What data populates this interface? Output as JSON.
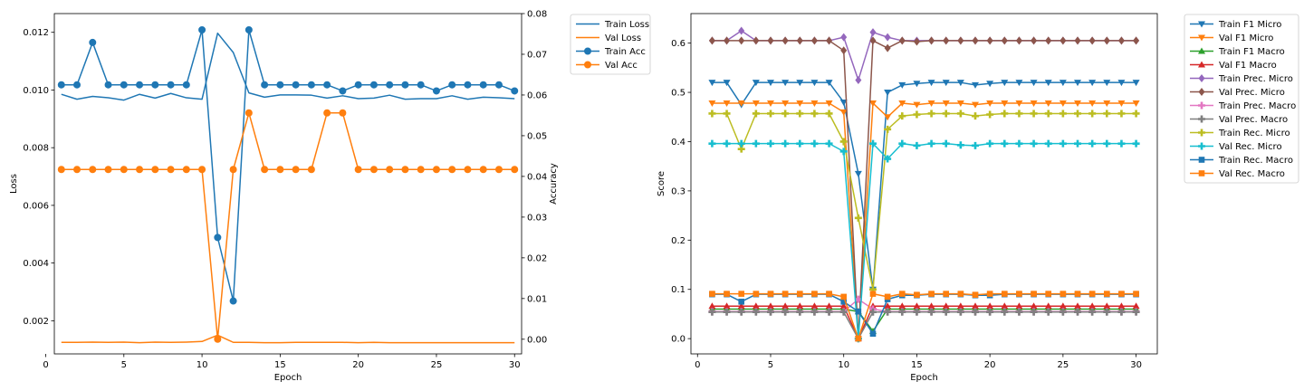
{
  "colors": {
    "blue": "#1f77b4",
    "orange": "#ff7f0e",
    "green": "#2ca02c",
    "red": "#d62728",
    "purple": "#9467bd",
    "brown": "#8c564b",
    "pink": "#e377c2",
    "gray": "#7f7f7f",
    "olive": "#bcbd22",
    "cyan": "#17becf"
  },
  "chart_data": [
    {
      "type": "line",
      "xlabel": "Epoch",
      "ylabel": "Loss",
      "ylabel_right": "Accuracy",
      "xlim": [
        0.55,
        30.45
      ],
      "ylim": [
        0.00085,
        0.01265
      ],
      "ylim_right": [
        -0.0036,
        0.08
      ],
      "x_ticks": [
        0,
        5,
        10,
        15,
        20,
        25,
        30
      ],
      "y_ticks": [
        0.002,
        0.004,
        0.006,
        0.008,
        0.01,
        0.012
      ],
      "y_tick_labels": [
        "0.002",
        "0.004",
        "0.006",
        "0.008",
        "0.010",
        "0.012"
      ],
      "y_ticks_right": [
        0.0,
        0.01,
        0.02,
        0.03,
        0.04,
        0.05,
        0.06,
        0.07,
        0.08
      ],
      "y_tick_labels_right": [
        "0.00",
        "0.01",
        "0.02",
        "0.03",
        "0.04",
        "0.05",
        "0.06",
        "0.07",
        "0.08"
      ],
      "legend": "outside-right",
      "x": [
        1,
        2,
        3,
        4,
        5,
        6,
        7,
        8,
        9,
        10,
        11,
        12,
        13,
        14,
        15,
        16,
        17,
        18,
        19,
        20,
        21,
        22,
        23,
        24,
        25,
        26,
        27,
        28,
        29,
        30
      ],
      "series": [
        {
          "name": "Train Loss",
          "axis": "left",
          "color": "blue",
          "marker": "none",
          "values": [
            0.00985,
            0.00968,
            0.00978,
            0.00973,
            0.00965,
            0.00985,
            0.00972,
            0.00988,
            0.00973,
            0.00968,
            0.01197,
            0.0113,
            0.0099,
            0.00975,
            0.00983,
            0.00983,
            0.00982,
            0.00972,
            0.0098,
            0.0097,
            0.00972,
            0.00982,
            0.00968,
            0.0097,
            0.0097,
            0.0098,
            0.00968,
            0.00975,
            0.00973,
            0.0097
          ]
        },
        {
          "name": "Val Loss",
          "axis": "left",
          "color": "orange",
          "marker": "none",
          "values": [
            0.00125,
            0.00125,
            0.00126,
            0.00125,
            0.00126,
            0.00124,
            0.00126,
            0.00125,
            0.00126,
            0.00128,
            0.0015,
            0.00125,
            0.00125,
            0.00124,
            0.00124,
            0.00125,
            0.00125,
            0.00125,
            0.00125,
            0.00124,
            0.00125,
            0.00124,
            0.00124,
            0.00124,
            0.00124,
            0.00124,
            0.00124,
            0.00124,
            0.00124,
            0.00124
          ]
        },
        {
          "name": "Train Acc",
          "axis": "right",
          "color": "blue",
          "marker": "circle",
          "values": [
            0.0625,
            0.0625,
            0.0729,
            0.0625,
            0.0625,
            0.0625,
            0.0625,
            0.0625,
            0.0625,
            0.076,
            0.025,
            0.0094,
            0.076,
            0.0625,
            0.0625,
            0.0625,
            0.0625,
            0.0625,
            0.061,
            0.0625,
            0.0625,
            0.0625,
            0.0625,
            0.0625,
            0.061,
            0.0625,
            0.0625,
            0.0625,
            0.0625,
            0.061
          ]
        },
        {
          "name": "Val Acc",
          "axis": "right",
          "color": "orange",
          "marker": "circle",
          "values": [
            0.0417,
            0.0417,
            0.0417,
            0.0417,
            0.0417,
            0.0417,
            0.0417,
            0.0417,
            0.0417,
            0.0417,
            0.0,
            0.0417,
            0.0556,
            0.0417,
            0.0417,
            0.0417,
            0.0417,
            0.0556,
            0.0556,
            0.0417,
            0.0417,
            0.0417,
            0.0417,
            0.0417,
            0.0417,
            0.0417,
            0.0417,
            0.0417,
            0.0417,
            0.0417
          ]
        }
      ]
    },
    {
      "type": "line",
      "xlabel": "Epoch",
      "ylabel": "Score",
      "xlim": [
        -0.45,
        31.45
      ],
      "ylim": [
        -0.031,
        0.66
      ],
      "x_ticks": [
        0,
        5,
        10,
        15,
        20,
        25,
        30
      ],
      "y_ticks": [
        0.0,
        0.1,
        0.2,
        0.3,
        0.4,
        0.5,
        0.6
      ],
      "y_tick_labels": [
        "0.0",
        "0.1",
        "0.2",
        "0.3",
        "0.4",
        "0.5",
        "0.6"
      ],
      "legend": "outside-right",
      "x": [
        1,
        2,
        3,
        4,
        5,
        6,
        7,
        8,
        9,
        10,
        11,
        12,
        13,
        14,
        15,
        16,
        17,
        18,
        19,
        20,
        21,
        22,
        23,
        24,
        25,
        26,
        27,
        28,
        29,
        30
      ],
      "series": [
        {
          "name": "Train F1 Micro",
          "color": "blue",
          "marker": "triangle-down",
          "values": [
            0.52,
            0.52,
            0.475,
            0.52,
            0.52,
            0.52,
            0.52,
            0.52,
            0.52,
            0.48,
            0.335,
            0.1,
            0.5,
            0.515,
            0.518,
            0.52,
            0.52,
            0.52,
            0.515,
            0.518,
            0.52,
            0.52,
            0.52,
            0.52,
            0.52,
            0.52,
            0.52,
            0.52,
            0.52,
            0.52
          ]
        },
        {
          "name": "Val F1 Micro",
          "color": "orange",
          "marker": "triangle-down",
          "values": [
            0.478,
            0.478,
            0.478,
            0.478,
            0.478,
            0.478,
            0.478,
            0.478,
            0.478,
            0.46,
            0.0,
            0.478,
            0.45,
            0.478,
            0.475,
            0.478,
            0.478,
            0.478,
            0.475,
            0.478,
            0.478,
            0.478,
            0.478,
            0.478,
            0.478,
            0.478,
            0.478,
            0.478,
            0.478,
            0.478
          ]
        },
        {
          "name": "Train F1 Macro",
          "color": "green",
          "marker": "triangle-up",
          "values": [
            0.06,
            0.06,
            0.06,
            0.06,
            0.06,
            0.06,
            0.06,
            0.06,
            0.06,
            0.06,
            0.055,
            0.015,
            0.06,
            0.06,
            0.06,
            0.06,
            0.06,
            0.06,
            0.06,
            0.06,
            0.06,
            0.06,
            0.06,
            0.06,
            0.06,
            0.06,
            0.06,
            0.06,
            0.06,
            0.06
          ]
        },
        {
          "name": "Val F1 Macro",
          "color": "red",
          "marker": "triangle-up",
          "values": [
            0.066,
            0.066,
            0.066,
            0.066,
            0.066,
            0.066,
            0.066,
            0.066,
            0.066,
            0.066,
            0.0,
            0.066,
            0.066,
            0.066,
            0.066,
            0.066,
            0.066,
            0.066,
            0.066,
            0.066,
            0.066,
            0.066,
            0.066,
            0.066,
            0.066,
            0.066,
            0.066,
            0.066,
            0.066,
            0.066
          ]
        },
        {
          "name": "Train Prec. Micro",
          "color": "purple",
          "marker": "diamond",
          "values": [
            0.605,
            0.605,
            0.625,
            0.605,
            0.605,
            0.605,
            0.605,
            0.605,
            0.605,
            0.612,
            0.525,
            0.622,
            0.612,
            0.605,
            0.605,
            0.605,
            0.605,
            0.605,
            0.605,
            0.605,
            0.605,
            0.605,
            0.605,
            0.605,
            0.605,
            0.605,
            0.605,
            0.605,
            0.605,
            0.605
          ]
        },
        {
          "name": "Val Prec. Micro",
          "color": "brown",
          "marker": "diamond",
          "values": [
            0.605,
            0.605,
            0.605,
            0.605,
            0.605,
            0.605,
            0.605,
            0.605,
            0.605,
            0.585,
            0.0,
            0.605,
            0.59,
            0.605,
            0.603,
            0.605,
            0.605,
            0.605,
            0.605,
            0.605,
            0.605,
            0.605,
            0.605,
            0.605,
            0.605,
            0.605,
            0.605,
            0.605,
            0.605,
            0.605
          ]
        },
        {
          "name": "Train Prec. Macro",
          "color": "pink",
          "marker": "plus",
          "values": [
            0.055,
            0.055,
            0.055,
            0.055,
            0.055,
            0.055,
            0.055,
            0.055,
            0.055,
            0.055,
            0.08,
            0.06,
            0.055,
            0.055,
            0.055,
            0.055,
            0.055,
            0.055,
            0.055,
            0.055,
            0.055,
            0.055,
            0.055,
            0.055,
            0.055,
            0.055,
            0.055,
            0.055,
            0.055,
            0.055
          ]
        },
        {
          "name": "Val Prec. Macro",
          "color": "gray",
          "marker": "plus",
          "values": [
            0.054,
            0.054,
            0.054,
            0.054,
            0.054,
            0.054,
            0.054,
            0.054,
            0.054,
            0.054,
            0.0,
            0.054,
            0.054,
            0.054,
            0.054,
            0.054,
            0.054,
            0.054,
            0.054,
            0.054,
            0.054,
            0.054,
            0.054,
            0.054,
            0.054,
            0.054,
            0.054,
            0.054,
            0.054,
            0.054
          ]
        },
        {
          "name": "Train Rec. Micro",
          "color": "olive",
          "marker": "plus",
          "values": [
            0.457,
            0.457,
            0.385,
            0.457,
            0.457,
            0.457,
            0.457,
            0.457,
            0.457,
            0.4,
            0.245,
            0.1,
            0.425,
            0.452,
            0.455,
            0.457,
            0.457,
            0.457,
            0.452,
            0.455,
            0.457,
            0.457,
            0.457,
            0.457,
            0.457,
            0.457,
            0.457,
            0.457,
            0.457,
            0.457
          ]
        },
        {
          "name": "Val Rec. Micro",
          "color": "cyan",
          "marker": "plus",
          "values": [
            0.396,
            0.396,
            0.396,
            0.396,
            0.396,
            0.396,
            0.396,
            0.396,
            0.396,
            0.38,
            0.0,
            0.396,
            0.365,
            0.396,
            0.392,
            0.396,
            0.396,
            0.393,
            0.392,
            0.396,
            0.396,
            0.396,
            0.396,
            0.396,
            0.396,
            0.396,
            0.396,
            0.396,
            0.396,
            0.396
          ]
        },
        {
          "name": "Train Rec. Macro",
          "color": "blue",
          "marker": "square",
          "values": [
            0.09,
            0.09,
            0.075,
            0.09,
            0.09,
            0.09,
            0.09,
            0.09,
            0.09,
            0.075,
            0.055,
            0.01,
            0.08,
            0.088,
            0.088,
            0.09,
            0.09,
            0.09,
            0.088,
            0.088,
            0.09,
            0.09,
            0.09,
            0.09,
            0.09,
            0.09,
            0.09,
            0.09,
            0.09,
            0.09
          ]
        },
        {
          "name": "Val Rec. Macro",
          "color": "orange",
          "marker": "square",
          "values": [
            0.091,
            0.091,
            0.091,
            0.091,
            0.091,
            0.091,
            0.091,
            0.091,
            0.091,
            0.085,
            0.0,
            0.091,
            0.085,
            0.091,
            0.089,
            0.091,
            0.091,
            0.091,
            0.089,
            0.091,
            0.091,
            0.091,
            0.091,
            0.091,
            0.091,
            0.091,
            0.091,
            0.091,
            0.091,
            0.091
          ]
        }
      ]
    }
  ]
}
